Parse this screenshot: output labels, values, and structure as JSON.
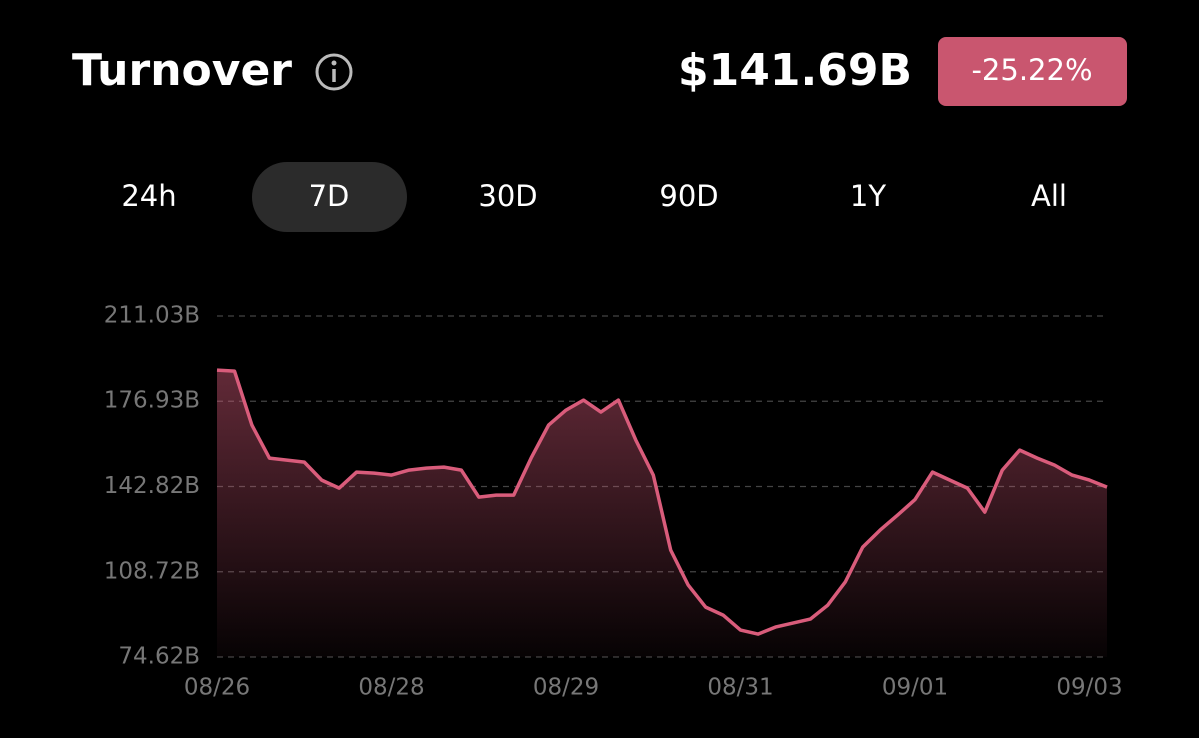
{
  "header": {
    "title": "Turnover",
    "value": "$141.69B",
    "change": "-25.22%"
  },
  "tabs": [
    "24h",
    "7D",
    "30D",
    "90D",
    "1Y",
    "All"
  ],
  "selected_tab": 1,
  "chart_data": {
    "type": "line",
    "categories": [
      "08/26",
      null,
      null,
      null,
      null,
      null,
      null,
      null,
      null,
      null,
      "08/28",
      null,
      null,
      null,
      null,
      null,
      null,
      null,
      null,
      null,
      "08/29",
      null,
      null,
      null,
      null,
      null,
      null,
      null,
      null,
      null,
      "08/31",
      null,
      null,
      null,
      null,
      null,
      null,
      null,
      null,
      null,
      "09/01",
      null,
      null,
      null,
      null,
      null,
      null,
      null,
      null,
      null,
      "09/03",
      null
    ],
    "series": [
      {
        "name": "Turnover",
        "color": "#d95c7b",
        "values": [
          189.4,
          189.0,
          167.4,
          154.2,
          153.4,
          152.6,
          145.4,
          142.2,
          148.6,
          148.2,
          147.4,
          149.4,
          150.2,
          150.6,
          149.4,
          138.6,
          139.4,
          139.4,
          154.2,
          167.4,
          173.4,
          177.4,
          172.6,
          177.4,
          161.4,
          147.4,
          117.4,
          103.4,
          94.6,
          91.4,
          85.4,
          83.8,
          86.6,
          88.2,
          89.8,
          95.4,
          104.6,
          118.6,
          125.4,
          131.4,
          137.6,
          148.6,
          145.4,
          142.2,
          132.6,
          149.4,
          157.4,
          154.2,
          151.4,
          147.4,
          145.4,
          142.6
        ]
      }
    ],
    "ylim": [
      74.62,
      211.03
    ],
    "yticks": [
      {
        "value": 74.62,
        "label": "74.62B"
      },
      {
        "value": 108.72,
        "label": "108.72B"
      },
      {
        "value": 142.82,
        "label": "142.82B"
      },
      {
        "value": 176.93,
        "label": "176.93B"
      },
      {
        "value": 211.03,
        "label": "211.03B"
      }
    ],
    "grid": true
  }
}
